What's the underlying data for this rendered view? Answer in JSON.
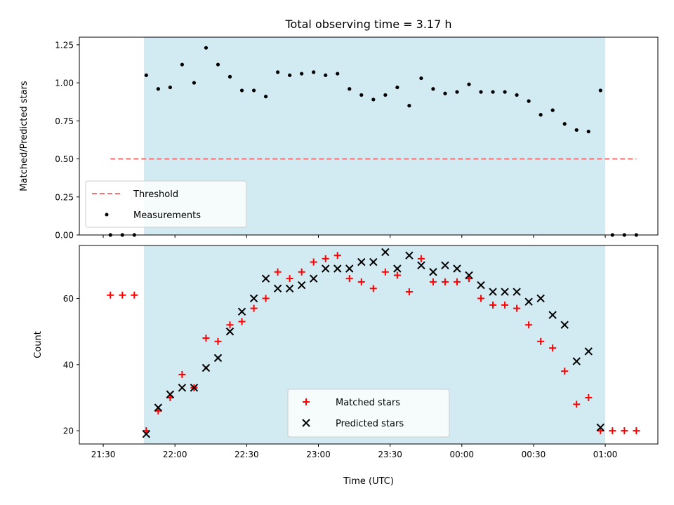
{
  "title": "Total observing time = 3.17 h",
  "colors": {
    "span": "#add8e6",
    "measurements": "#000000",
    "threshold": "#ff6f6f",
    "matched": "#ff0000",
    "predicted": "#000000"
  },
  "chart_data": [
    {
      "type": "scatter",
      "ylabel": "Matched/Predicted stars",
      "ylim": [
        0,
        1.3
      ],
      "yticks": [
        "0.00",
        "0.25",
        "0.50",
        "0.75",
        "1.00",
        "1.25"
      ],
      "xlim": [
        "21:20",
        "01:22"
      ],
      "shaded_span": [
        "21:47",
        "01:00"
      ],
      "legend": {
        "position": "lower left",
        "entries": [
          "Threshold",
          "Measurements"
        ]
      },
      "series": [
        {
          "name": "Threshold",
          "style": "dashed-line",
          "x": [
            "21:33",
            "01:13"
          ],
          "y": [
            0.5,
            0.5
          ]
        },
        {
          "name": "Measurements",
          "style": "dot",
          "x": [
            "21:33",
            "21:38",
            "21:43",
            "21:48",
            "21:53",
            "21:58",
            "22:03",
            "22:08",
            "22:13",
            "22:18",
            "22:23",
            "22:28",
            "22:33",
            "22:38",
            "22:43",
            "22:48",
            "22:53",
            "22:58",
            "23:03",
            "23:08",
            "23:13",
            "23:18",
            "23:23",
            "23:28",
            "23:33",
            "23:38",
            "23:43",
            "23:48",
            "23:53",
            "23:58",
            "00:03",
            "00:08",
            "00:13",
            "00:18",
            "00:23",
            "00:28",
            "00:33",
            "00:38",
            "00:43",
            "00:48",
            "00:53",
            "00:58",
            "01:03",
            "01:08",
            "01:13"
          ],
          "y": [
            0.0,
            0.0,
            0.0,
            1.05,
            0.96,
            0.97,
            1.12,
            1.0,
            1.23,
            1.12,
            1.04,
            0.95,
            0.95,
            0.91,
            1.07,
            1.05,
            1.06,
            1.07,
            1.05,
            1.06,
            0.96,
            0.92,
            0.89,
            0.92,
            0.97,
            0.85,
            1.03,
            0.96,
            0.93,
            0.94,
            0.99,
            0.94,
            0.94,
            0.94,
            0.92,
            0.88,
            0.79,
            0.82,
            0.73,
            0.69,
            0.68,
            0.95,
            0.0,
            0.0,
            0.0
          ]
        }
      ]
    },
    {
      "type": "scatter",
      "ylabel": "Count",
      "xlabel": "Time (UTC)",
      "ylim": [
        16,
        76
      ],
      "yticks": [
        "20",
        "40",
        "60"
      ],
      "xlim": [
        "21:20",
        "01:22"
      ],
      "xticks": [
        "21:30",
        "22:00",
        "22:30",
        "23:00",
        "23:30",
        "00:00",
        "00:30",
        "01:00"
      ],
      "shaded_span": [
        "21:47",
        "01:00"
      ],
      "legend": {
        "position": "lower center",
        "entries": [
          "Matched stars",
          "Predicted stars"
        ]
      },
      "series": [
        {
          "name": "Matched stars",
          "marker": "plus",
          "x": [
            "21:33",
            "21:38",
            "21:43",
            "21:48",
            "21:53",
            "21:58",
            "22:03",
            "22:08",
            "22:13",
            "22:18",
            "22:23",
            "22:28",
            "22:33",
            "22:38",
            "22:43",
            "22:48",
            "22:53",
            "22:58",
            "23:03",
            "23:08",
            "23:13",
            "23:18",
            "23:23",
            "23:28",
            "23:33",
            "23:38",
            "23:43",
            "23:48",
            "23:53",
            "23:58",
            "00:03",
            "00:08",
            "00:13",
            "00:18",
            "00:23",
            "00:28",
            "00:33",
            "00:38",
            "00:43",
            "00:48",
            "00:53",
            "00:58",
            "01:03",
            "01:08",
            "01:13"
          ],
          "y": [
            61,
            61,
            61,
            20,
            26,
            30,
            37,
            33,
            48,
            47,
            52,
            53,
            57,
            60,
            68,
            66,
            68,
            71,
            72,
            73,
            66,
            65,
            63,
            68,
            67,
            62,
            72,
            65,
            65,
            65,
            66,
            60,
            58,
            58,
            57,
            52,
            47,
            45,
            38,
            28,
            30,
            20,
            20,
            20,
            20
          ]
        },
        {
          "name": "Predicted stars",
          "marker": "x",
          "x": [
            "21:48",
            "21:53",
            "21:58",
            "22:03",
            "22:08",
            "22:13",
            "22:18",
            "22:23",
            "22:28",
            "22:33",
            "22:38",
            "22:43",
            "22:48",
            "22:53",
            "22:58",
            "23:03",
            "23:08",
            "23:13",
            "23:18",
            "23:23",
            "23:28",
            "23:33",
            "23:38",
            "23:43",
            "23:48",
            "23:53",
            "23:58",
            "00:03",
            "00:08",
            "00:13",
            "00:18",
            "00:23",
            "00:28",
            "00:33",
            "00:38",
            "00:43",
            "00:48",
            "00:53",
            "00:58"
          ],
          "y": [
            19,
            27,
            31,
            33,
            33,
            39,
            42,
            50,
            56,
            60,
            66,
            63,
            63,
            64,
            66,
            69,
            69,
            69,
            71,
            71,
            74,
            69,
            73,
            70,
            68,
            70,
            69,
            67,
            64,
            62,
            62,
            62,
            59,
            60,
            55,
            52,
            41,
            44,
            21
          ]
        }
      ]
    }
  ]
}
